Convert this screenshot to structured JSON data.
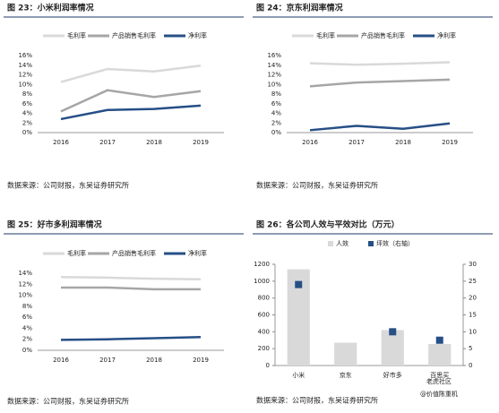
{
  "chart_data": [
    {
      "type": "line",
      "title": "图 23：小米利润率情况",
      "source": "数据来源：公司财报，东吴证券研究所",
      "categories": [
        "2016",
        "2017",
        "2018",
        "2019"
      ],
      "series": [
        {
          "name": "毛利率",
          "color": "#d9d9d9",
          "values": [
            10.5,
            13.2,
            12.7,
            13.9
          ]
        },
        {
          "name": "产品销售毛利率",
          "color": "#a6a6a6",
          "values": [
            4.4,
            8.8,
            7.4,
            8.6
          ]
        },
        {
          "name": "净利率",
          "color": "#264f86",
          "values": [
            2.8,
            4.7,
            4.9,
            5.6
          ]
        }
      ],
      "ylim": [
        0,
        16
      ],
      "yticks": [
        {
          "value": 0,
          "label": "0%"
        },
        {
          "value": 2,
          "label": "2%"
        },
        {
          "value": 4,
          "label": "4%"
        },
        {
          "value": 6,
          "label": "6%"
        },
        {
          "value": 8,
          "label": "8%"
        },
        {
          "value": 10,
          "label": "10%"
        },
        {
          "value": 12,
          "label": "12%"
        },
        {
          "value": 14,
          "label": "14%"
        },
        {
          "value": 16,
          "label": "16%"
        }
      ]
    },
    {
      "type": "line",
      "title": "图 24：京东利润率情况",
      "source": "数据来源：公司财报，东吴证券研究所",
      "categories": [
        "2016",
        "2017",
        "2018",
        "2019"
      ],
      "series": [
        {
          "name": "毛利率",
          "color": "#d9d9d9",
          "values": [
            14.4,
            14.1,
            14.3,
            14.6
          ]
        },
        {
          "name": "产品销售毛利率",
          "color": "#a6a6a6",
          "values": [
            9.6,
            10.4,
            10.7,
            11.0
          ]
        },
        {
          "name": "净利率",
          "color": "#264f86",
          "values": [
            0.5,
            1.4,
            0.8,
            1.9
          ]
        }
      ],
      "ylim": [
        0,
        16
      ],
      "yticks": [
        {
          "value": 0,
          "label": "0%"
        },
        {
          "value": 2,
          "label": "2%"
        },
        {
          "value": 4,
          "label": "4%"
        },
        {
          "value": 6,
          "label": "6%"
        },
        {
          "value": 8,
          "label": "8%"
        },
        {
          "value": 10,
          "label": "10%"
        },
        {
          "value": 12,
          "label": "12%"
        },
        {
          "value": 14,
          "label": "14%"
        },
        {
          "value": 16,
          "label": "16%"
        }
      ]
    },
    {
      "type": "line",
      "title": "图 25：好市多利润率情况",
      "source": "数据来源：公司财报，东吴证券研究所",
      "categories": [
        "2016",
        "2017",
        "2018",
        "2019"
      ],
      "series": [
        {
          "name": "毛利率",
          "color": "#d9d9d9",
          "values": [
            13.3,
            13.2,
            13.0,
            12.9
          ]
        },
        {
          "name": "产品销售毛利率",
          "color": "#a6a6a6",
          "values": [
            11.4,
            11.4,
            11.1,
            11.1
          ]
        },
        {
          "name": "净利率",
          "color": "#264f86",
          "values": [
            1.9,
            2.0,
            2.2,
            2.4
          ]
        }
      ],
      "ylim": [
        0,
        14
      ],
      "yticks": [
        {
          "value": 0,
          "label": "0%"
        },
        {
          "value": 2,
          "label": "2%"
        },
        {
          "value": 4,
          "label": "4%"
        },
        {
          "value": 6,
          "label": "6%"
        },
        {
          "value": 8,
          "label": "8%"
        },
        {
          "value": 10,
          "label": "10%"
        },
        {
          "value": 12,
          "label": "12%"
        },
        {
          "value": 14,
          "label": "14%"
        }
      ]
    },
    {
      "type": "bar",
      "title": "图 26：各公司人效与平效对比（万元）",
      "source": "数据来源：公司财报，东吴证券研究所",
      "categories": [
        "小米",
        "京东",
        "好市多",
        "百思买"
      ],
      "series": [
        {
          "name": "人效",
          "color": "#d9d9d9",
          "values": [
            1140,
            270,
            420,
            255
          ]
        },
        {
          "name": "坪效（右轴）",
          "color": "#264f86",
          "axis": "y2",
          "values": [
            24,
            null,
            10,
            7.5
          ]
        }
      ],
      "ylim": [
        0,
        1200
      ],
      "yticks": [
        0,
        200,
        400,
        600,
        800,
        1000,
        1200
      ],
      "y2lim": [
        0,
        30
      ],
      "y2ticks": [
        0,
        5,
        10,
        15,
        20,
        25,
        30
      ]
    }
  ],
  "watermark": [
    "老虎社区",
    "@价值陈重机"
  ]
}
